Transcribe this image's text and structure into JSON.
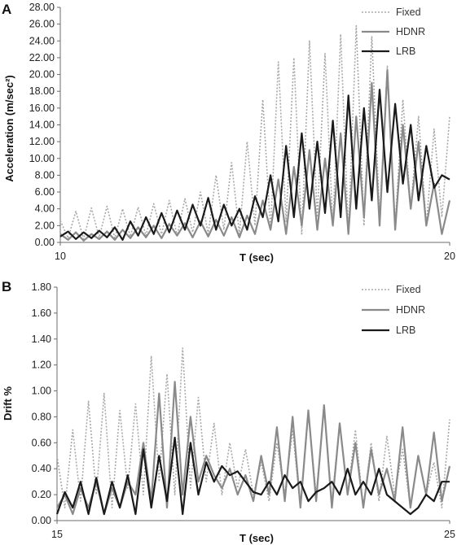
{
  "colors": {
    "fixed": "#a8a8a8",
    "hdnr": "#8a8a8a",
    "lrb": "#1a1a1a",
    "axis": "#6b6b6b"
  },
  "chart_data": [
    {
      "panel": "A",
      "type": "line",
      "xlabel": "T (sec)",
      "ylabel": "Acceleration (m/sec²)",
      "xlim": [
        10,
        20
      ],
      "ylim": [
        0,
        28
      ],
      "x_ticks": [
        "10",
        "20"
      ],
      "y_ticks": [
        "0.00",
        "2.00",
        "4.00",
        "6.00",
        "8.00",
        "10.00",
        "12.00",
        "14.00",
        "16.00",
        "18.00",
        "20.00",
        "22.00",
        "24.00",
        "26.00",
        "28.00"
      ],
      "legend_position": "top-right",
      "grid": false,
      "series": [
        {
          "name": "Fixed",
          "style": "dotted",
          "x": [
            10.0,
            10.2,
            10.4,
            10.6,
            10.8,
            11.0,
            11.2,
            11.4,
            11.6,
            11.8,
            12.0,
            12.2,
            12.4,
            12.6,
            12.8,
            13.0,
            13.2,
            13.4,
            13.6,
            13.8,
            14.0,
            14.2,
            14.4,
            14.6,
            14.8,
            15.0,
            15.2,
            15.4,
            15.6,
            15.8,
            16.0,
            16.2,
            16.4,
            16.6,
            16.8,
            17.0,
            17.2,
            17.4,
            17.6,
            17.8,
            18.0,
            18.2,
            18.4,
            18.6,
            18.8,
            19.0,
            19.2,
            19.4,
            19.6,
            19.8,
            20.0
          ],
          "values": [
            2.6,
            0.5,
            3.7,
            0.4,
            4.1,
            0.6,
            4.3,
            0.5,
            4.0,
            0.7,
            4.2,
            0.8,
            4.6,
            1.0,
            5.0,
            0.8,
            5.2,
            1.2,
            6.0,
            1.0,
            8.0,
            1.5,
            9.5,
            1.0,
            12.0,
            2.0,
            17.0,
            1.5,
            21.5,
            2.5,
            22.0,
            1.0,
            24.0,
            3.0,
            22.5,
            2.0,
            24.8,
            1.0,
            25.8,
            2.0,
            24.5,
            3.0,
            21.0,
            2.0,
            17.0,
            4.0,
            15.0,
            2.0,
            13.5,
            3.0,
            15.0
          ]
        },
        {
          "name": "HDNR",
          "style": "solid",
          "x": [
            10.0,
            10.2,
            10.4,
            10.6,
            10.8,
            11.0,
            11.2,
            11.4,
            11.6,
            11.8,
            12.0,
            12.2,
            12.4,
            12.6,
            12.8,
            13.0,
            13.2,
            13.4,
            13.6,
            13.8,
            14.0,
            14.2,
            14.4,
            14.6,
            14.8,
            15.0,
            15.2,
            15.4,
            15.6,
            15.8,
            16.0,
            16.2,
            16.4,
            16.6,
            16.8,
            17.0,
            17.2,
            17.4,
            17.6,
            17.8,
            18.0,
            18.2,
            18.4,
            18.6,
            18.8,
            19.0,
            19.2,
            19.4,
            19.6,
            19.8,
            20.0
          ],
          "values": [
            1.0,
            0.3,
            1.2,
            0.2,
            1.0,
            0.4,
            1.3,
            0.3,
            1.5,
            0.5,
            1.8,
            0.6,
            2.0,
            0.5,
            2.2,
            0.8,
            2.3,
            0.6,
            2.5,
            0.7,
            2.7,
            0.8,
            3.0,
            0.6,
            3.2,
            1.0,
            5.0,
            1.5,
            7.5,
            1.0,
            9.0,
            2.0,
            11.0,
            1.5,
            10.0,
            2.0,
            13.0,
            1.0,
            15.0,
            3.0,
            19.0,
            2.0,
            20.5,
            1.5,
            14.0,
            4.0,
            12.0,
            2.0,
            7.0,
            1.0,
            5.0
          ]
        },
        {
          "name": "LRB",
          "style": "solid",
          "x": [
            10.0,
            10.2,
            10.4,
            10.6,
            10.8,
            11.0,
            11.2,
            11.4,
            11.6,
            11.8,
            12.0,
            12.2,
            12.4,
            12.6,
            12.8,
            13.0,
            13.2,
            13.4,
            13.6,
            13.8,
            14.0,
            14.2,
            14.4,
            14.6,
            14.8,
            15.0,
            15.2,
            15.4,
            15.6,
            15.8,
            16.0,
            16.2,
            16.4,
            16.6,
            16.8,
            17.0,
            17.2,
            17.4,
            17.6,
            17.8,
            18.0,
            18.2,
            18.4,
            18.6,
            18.8,
            19.0,
            19.2,
            19.4,
            19.6,
            19.8,
            20.0
          ],
          "values": [
            0.7,
            1.3,
            0.4,
            1.2,
            0.5,
            1.4,
            0.6,
            1.8,
            0.3,
            2.5,
            0.8,
            3.0,
            1.0,
            3.5,
            1.2,
            3.8,
            1.5,
            4.5,
            2.0,
            5.3,
            1.5,
            4.5,
            2.0,
            4.0,
            1.5,
            5.5,
            3.0,
            8.0,
            2.5,
            11.5,
            3.0,
            13.0,
            4.0,
            12.0,
            3.5,
            14.5,
            3.0,
            17.5,
            4.0,
            16.0,
            5.0,
            18.2,
            6.0,
            16.5,
            7.0,
            14.0,
            5.0,
            11.5,
            6.5,
            8.0,
            7.5
          ]
        }
      ]
    },
    {
      "panel": "B",
      "type": "line",
      "xlabel": "T (sec)",
      "ylabel": "Drift %",
      "xlim": [
        15,
        25
      ],
      "ylim": [
        0,
        1.8
      ],
      "x_ticks": [
        "15",
        "25"
      ],
      "y_ticks": [
        "0.00",
        "0.20",
        "0.40",
        "0.60",
        "0.80",
        "1.00",
        "1.20",
        "1.40",
        "1.60",
        "1.80"
      ],
      "legend_position": "top-right",
      "grid": false,
      "series": [
        {
          "name": "Fixed",
          "style": "dotted",
          "x": [
            15.0,
            15.2,
            15.4,
            15.6,
            15.8,
            16.0,
            16.2,
            16.4,
            16.6,
            16.8,
            17.0,
            17.2,
            17.4,
            17.6,
            17.8,
            18.0,
            18.2,
            18.4,
            18.6,
            18.8,
            19.0,
            19.2,
            19.4,
            19.6,
            19.8,
            20.0,
            20.2,
            20.4,
            20.6,
            20.8,
            21.0,
            21.2,
            21.4,
            21.6,
            21.8,
            22.0,
            22.2,
            22.4,
            22.6,
            22.8,
            23.0,
            23.2,
            23.4,
            23.6,
            23.8,
            24.0,
            24.2,
            24.4,
            24.6,
            24.8,
            25.0
          ],
          "values": [
            0.5,
            0.1,
            0.7,
            0.15,
            0.92,
            0.2,
            0.98,
            0.1,
            0.85,
            0.25,
            0.9,
            0.2,
            1.27,
            0.3,
            1.13,
            0.2,
            1.33,
            0.25,
            0.95,
            0.3,
            0.75,
            0.2,
            0.6,
            0.25,
            0.55,
            0.2,
            0.45,
            0.15,
            0.6,
            0.2,
            0.7,
            0.1,
            0.82,
            0.2,
            0.85,
            0.15,
            0.75,
            0.2,
            0.7,
            0.1,
            0.6,
            0.15,
            0.65,
            0.2,
            0.55,
            0.1,
            0.5,
            0.2,
            0.45,
            0.1,
            0.78
          ]
        },
        {
          "name": "HDNR",
          "style": "solid",
          "x": [
            15.0,
            15.2,
            15.4,
            15.6,
            15.8,
            16.0,
            16.2,
            16.4,
            16.6,
            16.8,
            17.0,
            17.2,
            17.4,
            17.6,
            17.8,
            18.0,
            18.2,
            18.4,
            18.6,
            18.8,
            19.0,
            19.2,
            19.4,
            19.6,
            19.8,
            20.0,
            20.2,
            20.4,
            20.6,
            20.8,
            21.0,
            21.2,
            21.4,
            21.6,
            21.8,
            22.0,
            22.2,
            22.4,
            22.6,
            22.8,
            23.0,
            23.2,
            23.4,
            23.6,
            23.8,
            24.0,
            24.2,
            24.4,
            24.6,
            24.8,
            25.0
          ],
          "values": [
            0.1,
            0.2,
            0.05,
            0.25,
            0.1,
            0.3,
            0.05,
            0.25,
            0.1,
            0.3,
            0.2,
            0.6,
            0.15,
            0.98,
            0.1,
            1.07,
            0.2,
            0.8,
            0.3,
            0.5,
            0.35,
            0.25,
            0.4,
            0.2,
            0.35,
            0.15,
            0.5,
            0.2,
            0.72,
            0.15,
            0.8,
            0.1,
            0.85,
            0.15,
            0.89,
            0.1,
            0.75,
            0.2,
            0.6,
            0.1,
            0.55,
            0.2,
            0.4,
            0.15,
            0.72,
            0.1,
            0.5,
            0.2,
            0.68,
            0.15,
            0.42
          ]
        },
        {
          "name": "LRB",
          "style": "solid",
          "x": [
            15.0,
            15.2,
            15.4,
            15.6,
            15.8,
            16.0,
            16.2,
            16.4,
            16.6,
            16.8,
            17.0,
            17.2,
            17.4,
            17.6,
            17.8,
            18.0,
            18.2,
            18.4,
            18.6,
            18.8,
            19.0,
            19.2,
            19.4,
            19.6,
            19.8,
            20.0,
            20.2,
            20.4,
            20.6,
            20.8,
            21.0,
            21.2,
            21.4,
            21.6,
            21.8,
            22.0,
            22.2,
            22.4,
            22.6,
            22.8,
            23.0,
            23.2,
            23.4,
            23.6,
            23.8,
            24.0,
            24.2,
            24.4,
            24.6,
            24.8,
            25.0
          ],
          "values": [
            0.05,
            0.22,
            0.1,
            0.3,
            0.05,
            0.33,
            0.05,
            0.3,
            0.1,
            0.35,
            0.05,
            0.55,
            0.1,
            0.5,
            0.15,
            0.64,
            0.05,
            0.6,
            0.2,
            0.45,
            0.3,
            0.42,
            0.35,
            0.38,
            0.3,
            0.22,
            0.2,
            0.3,
            0.2,
            0.35,
            0.25,
            0.3,
            0.15,
            0.22,
            0.25,
            0.3,
            0.2,
            0.4,
            0.2,
            0.3,
            0.2,
            0.4,
            0.2,
            0.15,
            0.1,
            0.05,
            0.1,
            0.2,
            0.15,
            0.3,
            0.3
          ]
        }
      ]
    }
  ]
}
